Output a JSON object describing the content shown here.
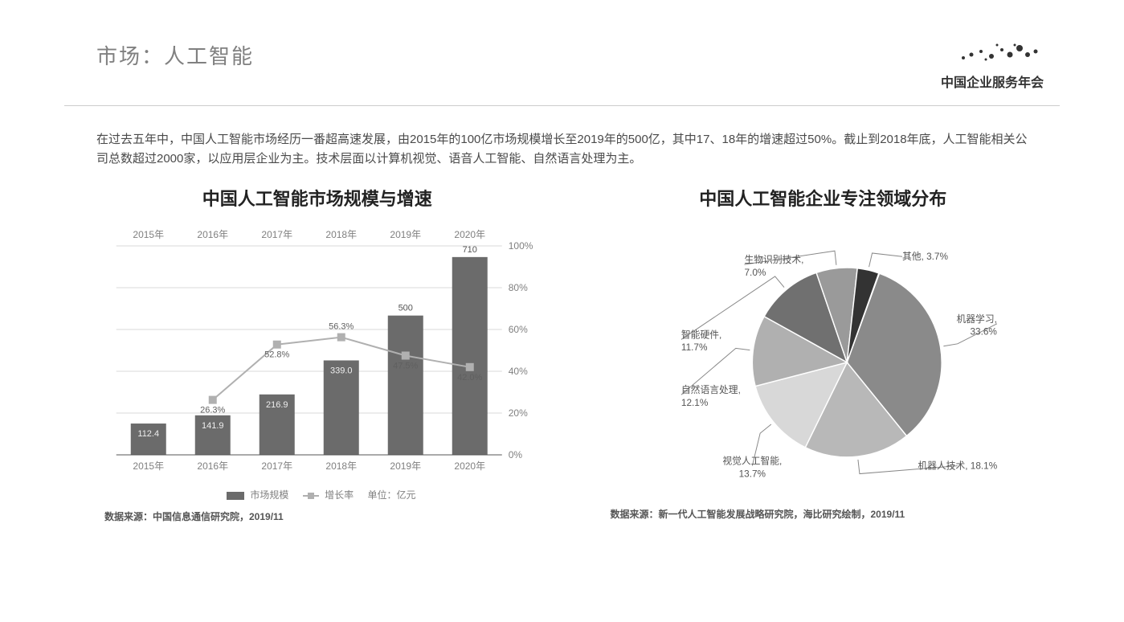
{
  "header": {
    "title": "市场：人工智能",
    "logo_text": "中国企业服务年会"
  },
  "intro_text": "在过去五年中，中国人工智能市场经历一番超高速发展，由2015年的100亿市场规模增长至2019年的500亿，其中17、18年的增速超过50%。截止到2018年底，人工智能相关公司总数超过2000家，以应用层企业为主。技术层面以计算机视觉、语音人工智能、自然语言处理为主。",
  "bar_chart": {
    "type": "bar+line",
    "title": "中国人工智能市场规模与增速",
    "categories": [
      "2015年",
      "2016年",
      "2017年",
      "2018年",
      "2019年",
      "2020年"
    ],
    "bar_values": [
      112.4,
      141.9,
      216.9,
      339.0,
      500,
      710
    ],
    "bar_labels": [
      "112.4",
      "141.9",
      "216.9",
      "339.0",
      "500",
      "710"
    ],
    "bar_color": "#6b6b6b",
    "bar_width": 0.55,
    "y_left_max": 750,
    "line_values": [
      null,
      26.3,
      52.8,
      56.3,
      47.5,
      42.0
    ],
    "line_labels": [
      null,
      "26.3%",
      "52.8%",
      "56.3%",
      "47.5%",
      "42.0%"
    ],
    "line_color": "#b0b0b0",
    "marker_color": "#b0b0b0",
    "y_right_ticks": [
      0,
      20,
      40,
      60,
      80,
      100
    ],
    "y_right_tick_labels": [
      "0%",
      "20%",
      "40%",
      "60%",
      "80%",
      "100%"
    ],
    "grid_color": "#d9d9d9",
    "axis_color": "#555555",
    "tick_fontsize": 12,
    "title_fontsize": 22,
    "legend": {
      "bar": "市场规模",
      "line": "增长率",
      "unit": "单位：亿元"
    },
    "source": "数据来源：中国信息通信研究院，2019/11"
  },
  "pie_chart": {
    "type": "pie",
    "title": "中国人工智能企业专注领域分布",
    "slices": [
      {
        "label": "机器学习",
        "pct": 33.6,
        "color": "#8a8a8a",
        "text": "机器学习, 33.6%"
      },
      {
        "label": "机器人技术",
        "pct": 18.1,
        "color": "#b8b8b8",
        "text": "机器人技术, 18.1%"
      },
      {
        "label": "视觉人工智能",
        "pct": 13.7,
        "color": "#d8d8d8",
        "text": "视觉人工智能, 13.7%"
      },
      {
        "label": "自然语言处理",
        "pct": 12.1,
        "color": "#b0b0b0",
        "text": "自然语言处理, 12.1%"
      },
      {
        "label": "智能硬件",
        "pct": 11.7,
        "color": "#707070",
        "text": "智能硬件, 11.7%"
      },
      {
        "label": "生物识别技术",
        "pct": 7.0,
        "color": "#9a9a9a",
        "text": "生物识别技术, 7.0%"
      },
      {
        "label": "其他",
        "pct": 3.7,
        "color": "#333333",
        "text": "其他, 3.7%"
      }
    ],
    "start_angle_deg": -70,
    "label_fontsize": 12,
    "label_color": "#555555",
    "separator_color": "#ffffff",
    "source": "数据来源：新一代人工智能发展战略研究院，海比研究绘制，2019/11"
  },
  "colors": {
    "background": "#ffffff",
    "title_text": "#808080",
    "body_text": "#4a4a4a"
  }
}
